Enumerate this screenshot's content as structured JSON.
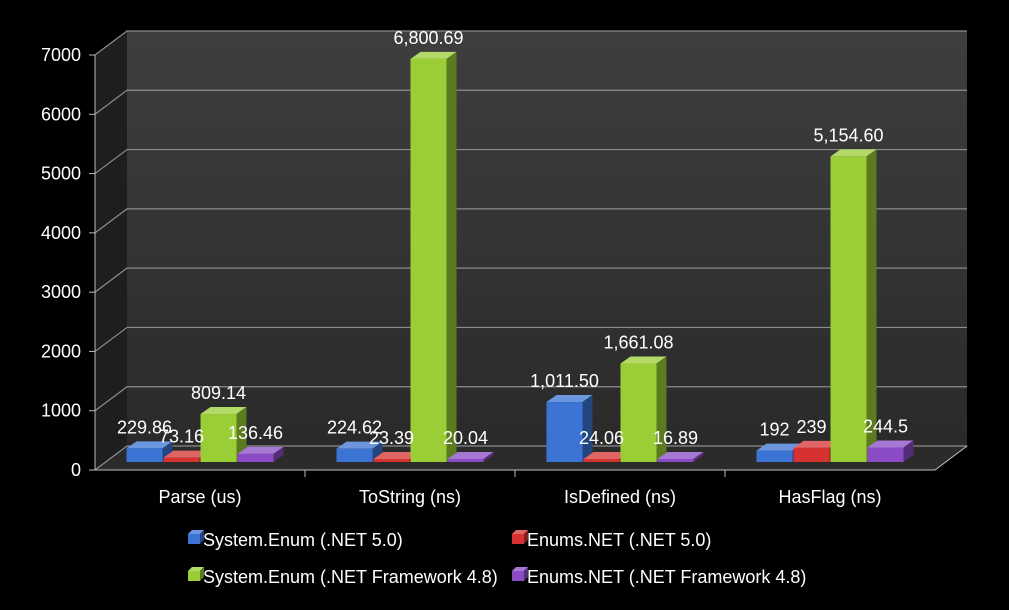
{
  "chart_data": {
    "type": "bar",
    "title": "",
    "xlabel": "",
    "ylabel": "",
    "ylim": [
      0,
      7000
    ],
    "yticks": [
      0,
      1000,
      2000,
      3000,
      4000,
      5000,
      6000,
      7000
    ],
    "grid": true,
    "legend_placement": "bottom",
    "categories": [
      "Parse (us)",
      "ToString (ns)",
      "IsDefined (ns)",
      "HasFlag (ns)"
    ],
    "series": [
      {
        "name": "System.Enum (.NET 5.0)",
        "color": "#3b74d4",
        "values": [
          229.86,
          224.62,
          1011.5,
          192
        ],
        "labels": [
          "229.86",
          "224.62",
          "1,011.50",
          "192"
        ]
      },
      {
        "name": "Enums.NET (.NET 5.0)",
        "color": "#d63232",
        "values": [
          73.16,
          23.39,
          24.06,
          239
        ],
        "labels": [
          "73.16",
          "23.39",
          "24.06",
          "239"
        ]
      },
      {
        "name": "System.Enum (.NET Framework 4.8)",
        "color": "#9acd36",
        "values": [
          809.14,
          6800.69,
          1661.08,
          5154.6
        ],
        "labels": [
          "809.14",
          "6,800.69",
          "1,661.08",
          "5,154.60"
        ]
      },
      {
        "name": "Enums.NET (.NET Framework 4.8)",
        "color": "#8a4bc4",
        "values": [
          136.46,
          20.04,
          16.89,
          244.5
        ],
        "labels": [
          "136.46",
          "20.04",
          "16.89",
          "244.5"
        ]
      }
    ]
  }
}
